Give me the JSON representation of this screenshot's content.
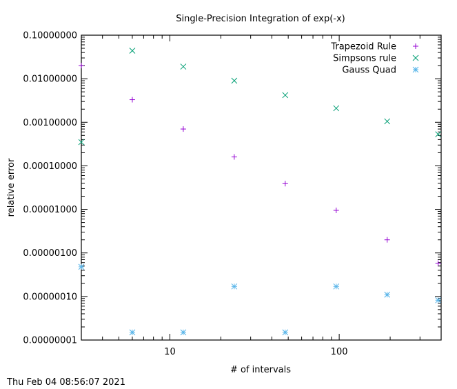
{
  "timestamp": "Thu Feb 04 08:56:07 2021",
  "chart_data": {
    "type": "scatter",
    "title": "Single-Precision Integration of exp(-x)",
    "xlabel": "# of intervals",
    "ylabel": "relative error",
    "xscale": "log",
    "yscale": "log",
    "xlim": [
      3,
      400
    ],
    "ylim": [
      1e-08,
      0.1
    ],
    "x_ticks": [
      {
        "value": 10,
        "label": "10"
      },
      {
        "value": 100,
        "label": "100"
      }
    ],
    "y_ticks": [
      {
        "value": 0.1,
        "label": "0.10000000"
      },
      {
        "value": 0.01,
        "label": "0.01000000"
      },
      {
        "value": 0.001,
        "label": "0.00100000"
      },
      {
        "value": 0.0001,
        "label": "0.00010000"
      },
      {
        "value": 1e-05,
        "label": "0.00001000"
      },
      {
        "value": 1e-06,
        "label": "0.00000100"
      },
      {
        "value": 1e-07,
        "label": "0.00000010"
      },
      {
        "value": 1e-08,
        "label": "0.00000001"
      }
    ],
    "grid": false,
    "legend_position": "top-right",
    "series": [
      {
        "name": "Trapezoid Rule",
        "marker": "plus",
        "color": "#9400d3",
        "points": [
          {
            "x": 3,
            "y": 0.02
          },
          {
            "x": 6,
            "y": 0.0033
          },
          {
            "x": 12,
            "y": 0.0007
          },
          {
            "x": 24,
            "y": 0.00016
          },
          {
            "x": 48,
            "y": 3.9e-05
          },
          {
            "x": 96,
            "y": 9.5e-06
          },
          {
            "x": 192,
            "y": 2e-06
          },
          {
            "x": 384,
            "y": 5.8e-07
          }
        ]
      },
      {
        "name": "Simpsons rule",
        "marker": "cross",
        "color": "#009e73",
        "points": [
          {
            "x": 3,
            "y": 0.00035
          },
          {
            "x": 6,
            "y": 0.044
          },
          {
            "x": 12,
            "y": 0.019
          },
          {
            "x": 24,
            "y": 0.009
          },
          {
            "x": 48,
            "y": 0.0042
          },
          {
            "x": 96,
            "y": 0.0021
          },
          {
            "x": 192,
            "y": 0.00105
          },
          {
            "x": 384,
            "y": 0.00053
          }
        ]
      },
      {
        "name": "Gauss Quad",
        "marker": "star",
        "color": "#56b4e9",
        "points": [
          {
            "x": 3,
            "y": 4.8e-07
          },
          {
            "x": 6,
            "y": 1.5e-08
          },
          {
            "x": 12,
            "y": 1.5e-08
          },
          {
            "x": 24,
            "y": 1.7e-07
          },
          {
            "x": 48,
            "y": 1.5e-08
          },
          {
            "x": 96,
            "y": 1.7e-07
          },
          {
            "x": 192,
            "y": 1.1e-07
          },
          {
            "x": 384,
            "y": 8.2e-08
          }
        ]
      }
    ]
  }
}
